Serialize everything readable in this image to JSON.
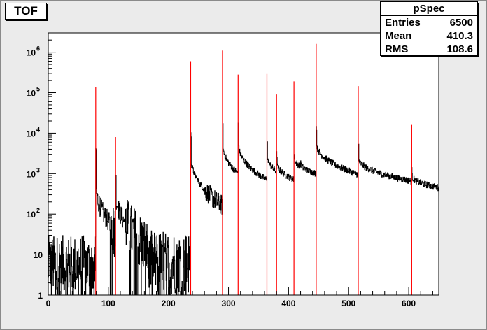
{
  "title": "TOF",
  "stats": {
    "name": "pSpec",
    "rows": [
      {
        "label": "Entries",
        "value": "6500"
      },
      {
        "label": "Mean",
        "value": "410.3"
      },
      {
        "label": "RMS",
        "value": "108.6"
      }
    ]
  },
  "chart_data": {
    "type": "histogram",
    "xlim": [
      0,
      650
    ],
    "ylim": [
      1,
      3000000
    ],
    "yscale": "log",
    "xticks": [
      0,
      100,
      200,
      300,
      400,
      500,
      600
    ],
    "yticks": [
      {
        "value": 1,
        "label": "1"
      },
      {
        "value": 10,
        "label": "10"
      },
      {
        "value": 100,
        "label": "10",
        "exp": "2"
      },
      {
        "value": 1000,
        "label": "10",
        "exp": "3"
      },
      {
        "value": 10000,
        "label": "10",
        "exp": "4"
      },
      {
        "value": 100000,
        "label": "10",
        "exp": "5"
      },
      {
        "value": 1000000,
        "label": "10",
        "exp": "6"
      }
    ],
    "colors": {
      "background": "#ebebeb",
      "frame": "#ffffff",
      "hist": "#000000",
      "peaks": "#ff0000"
    },
    "series": [
      {
        "type": "step-histogram",
        "color": "#000000",
        "segments": [
          {
            "x0": 0,
            "x1": 79,
            "kind": "noise",
            "lo": 1,
            "hi": 30
          },
          {
            "x0": 79,
            "x1": 112,
            "kind": "decay",
            "peak": 4000,
            "start": 600,
            "end": 40
          },
          {
            "x0": 112,
            "x1": 165,
            "kind": "decay",
            "peak": 800,
            "start": 400,
            "end": 15
          },
          {
            "x0": 165,
            "x1": 237,
            "kind": "noise",
            "lo": 1,
            "hi": 40
          },
          {
            "x0": 237,
            "x1": 290,
            "kind": "decay",
            "peak": 9000,
            "start": 3000,
            "end": 160
          },
          {
            "x0": 290,
            "x1": 316,
            "kind": "decay",
            "peak": 20000,
            "start": 6000,
            "end": 1000
          },
          {
            "x0": 316,
            "x1": 364,
            "kind": "decay",
            "peak": 18000,
            "start": 6000,
            "end": 700
          },
          {
            "x0": 364,
            "x1": 380,
            "kind": "decay",
            "peak": 7000,
            "start": 3000,
            "end": 1100
          },
          {
            "x0": 380,
            "x1": 409,
            "kind": "decay",
            "peak": 3000,
            "start": 2000,
            "end": 700
          },
          {
            "x0": 409,
            "x1": 420,
            "kind": "decay",
            "peak": 3000,
            "start": 2500,
            "end": 1500
          },
          {
            "x0": 420,
            "x1": 446,
            "kind": "decay",
            "peak": 2000,
            "start": 1800,
            "end": 1000
          },
          {
            "x0": 446,
            "x1": 516,
            "kind": "decay",
            "peak": 14000,
            "start": 6000,
            "end": 950
          },
          {
            "x0": 516,
            "x1": 605,
            "kind": "decay",
            "peak": 5000,
            "start": 2500,
            "end": 650
          },
          {
            "x0": 605,
            "x1": 650,
            "kind": "decay",
            "peak": 1200,
            "start": 900,
            "end": 450
          }
        ]
      },
      {
        "type": "peaks",
        "color": "#ff0000",
        "peaks": [
          {
            "x": 79,
            "y": 140000
          },
          {
            "x": 112,
            "y": 8000
          },
          {
            "x": 237,
            "y": 600000
          },
          {
            "x": 290,
            "y": 1100000
          },
          {
            "x": 316,
            "y": 280000
          },
          {
            "x": 364,
            "y": 290000
          },
          {
            "x": 380,
            "y": 90000
          },
          {
            "x": 409,
            "y": 190000
          },
          {
            "x": 446,
            "y": 1600000
          },
          {
            "x": 516,
            "y": 145000
          },
          {
            "x": 605,
            "y": 16000
          }
        ]
      }
    ]
  }
}
